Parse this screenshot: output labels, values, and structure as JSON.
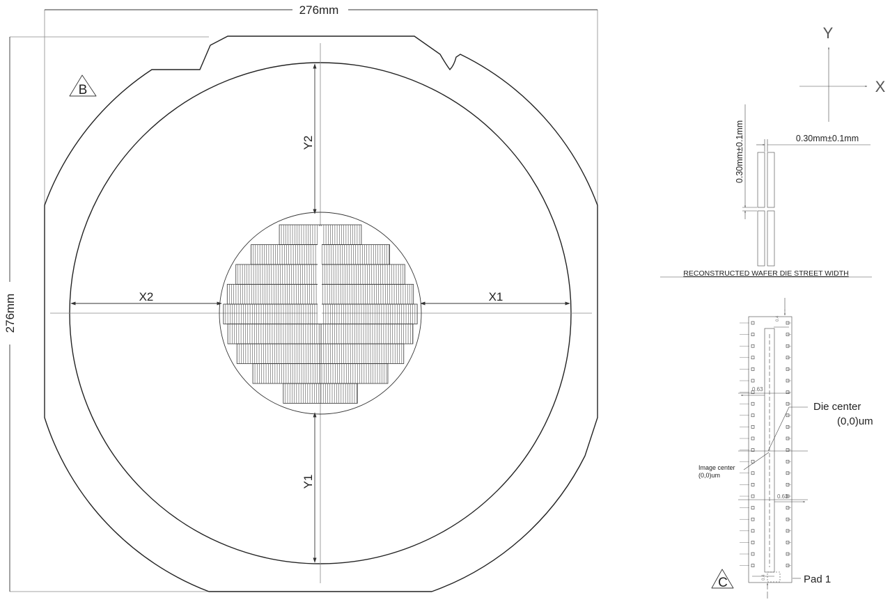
{
  "wafer_drawing": {
    "width_dim": "276mm",
    "height_dim": "276mm",
    "marker": "B",
    "labels": {
      "x1": "X1",
      "x2": "X2",
      "y1": "Y1",
      "y2": "Y2"
    }
  },
  "axes_legend": {
    "x": "X",
    "y": "Y"
  },
  "street_detail": {
    "vertical_dim": "0.30mm±0.1mm",
    "horizontal_dim": "0.30mm±0.1mm",
    "caption": "RECONSTRUCTED WAFER DIE STREET WIDTH"
  },
  "die_detail": {
    "marker": "C",
    "die_center_line1": "Die center",
    "die_center_line2": "(0,0)um",
    "image_center_line1": "Image center",
    "image_center_line2": "(0,0)um",
    "dim_left": "0.63",
    "dim_right": "0.63",
    "dim_top": "0.4",
    "dim_bottom": "0.4",
    "pad_label": "Pad 1"
  }
}
